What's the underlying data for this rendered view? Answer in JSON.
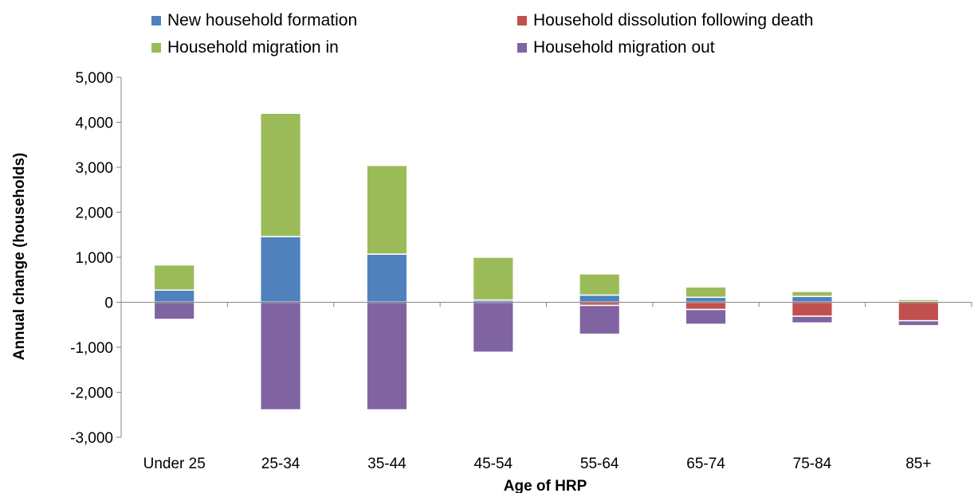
{
  "chart_data": {
    "type": "bar",
    "stacked": true,
    "title": "",
    "xlabel": "Age of HRP",
    "ylabel": "Annual change (households)",
    "ylim": [
      -3000,
      5000
    ],
    "ytick_values": [
      -3000,
      -2000,
      -1000,
      0,
      1000,
      2000,
      3000,
      4000,
      5000
    ],
    "ytick_labels": [
      "-3,000",
      "-2,000",
      "-1,000",
      "0",
      "1,000",
      "2,000",
      "3,000",
      "4,000",
      "5,000"
    ],
    "grid": false,
    "legend_position": "top",
    "categories": [
      "Under 25",
      "25-34",
      "35-44",
      "45-54",
      "55-64",
      "65-74",
      "75-84",
      "85+"
    ],
    "series": [
      {
        "name": "New household formation",
        "color": "#4f81bd",
        "direction": "positive",
        "values": [
          270,
          1460,
          1070,
          50,
          160,
          110,
          130,
          10
        ]
      },
      {
        "name": "Household dissolution following death",
        "color": "#c0504d",
        "direction": "negative",
        "values": [
          0,
          0,
          0,
          0,
          -70,
          -160,
          -310,
          -410
        ]
      },
      {
        "name": "Household migration in",
        "color": "#9bbb59",
        "direction": "positive",
        "values": [
          560,
          2740,
          1970,
          950,
          470,
          230,
          110,
          50
        ]
      },
      {
        "name": "Household migration out",
        "color": "#8064a2",
        "direction": "negative",
        "values": [
          -380,
          -2390,
          -2390,
          -1110,
          -640,
          -330,
          -150,
          -110
        ]
      }
    ],
    "legend_order": [
      0,
      1,
      2,
      3
    ]
  }
}
